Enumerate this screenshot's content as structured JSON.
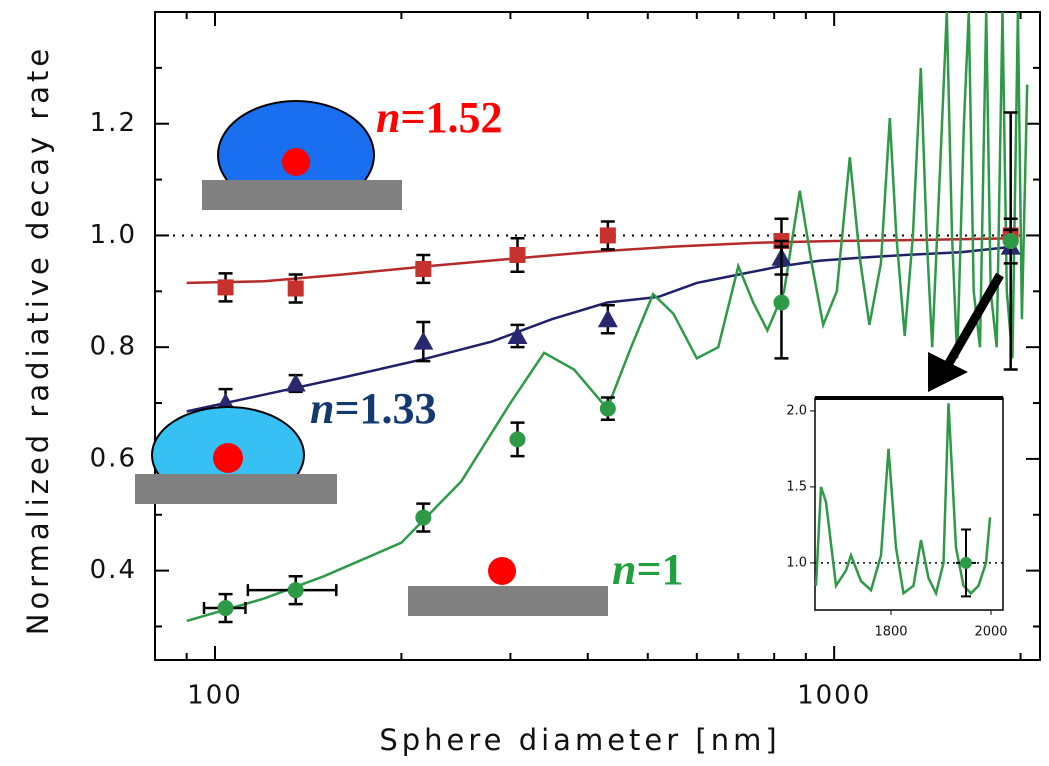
{
  "chart_data": {
    "type": "scatter",
    "x_label": "Sphere diameter [nm]",
    "y_label": "Normalized radiative decay rate",
    "xscale": "log",
    "xlim": [
      80,
      2150
    ],
    "ylim": [
      0.24,
      1.4
    ],
    "xticks": [
      100,
      1000
    ],
    "xminorticks": [
      90,
      200,
      300,
      400,
      500,
      600,
      700,
      800,
      900,
      2000
    ],
    "yticks": [
      0.4,
      0.6,
      0.8,
      {
        "value": 1,
        "label": "1.0"
      },
      1.2
    ],
    "yminorticks": [
      0.3,
      0.5,
      0.7,
      0.9,
      1.1,
      1.3
    ],
    "reference_line": 1,
    "series": [
      {
        "name": "n=1.52",
        "color": "#c8322e",
        "label_color": "#ff0000",
        "line_color": "#b52a2a",
        "marker": "square",
        "x": [
          104,
          135,
          217,
          308,
          431,
          822,
          1928
        ],
        "values": [
          0.907,
          0.905,
          0.94,
          0.965,
          1.0,
          0.99,
          1.0
        ],
        "errors": [
          0.025,
          0.025,
          0.025,
          0.03,
          0.025,
          0.04,
          0.03
        ],
        "theory_x": [
          90,
          120,
          160,
          220,
          300,
          400,
          550,
          750,
          1000,
          1400,
          1950
        ],
        "theory_values": [
          0.915,
          0.918,
          0.93,
          0.945,
          0.958,
          0.97,
          0.98,
          0.987,
          0.99,
          0.992,
          0.995
        ]
      },
      {
        "name": "n=1.33",
        "color": "#28286e",
        "label_color": "#123a6e",
        "line_color": "#20206a",
        "marker": "triangle",
        "x": [
          104,
          135,
          217,
          308,
          431,
          822,
          1928
        ],
        "values": [
          0.7,
          0.735,
          0.81,
          0.82,
          0.85,
          0.96,
          0.98
        ],
        "errors": [
          0.025,
          0.015,
          0.035,
          0.02,
          0.025,
          0.03,
          0.03
        ],
        "theory_x": [
          90,
          120,
          160,
          220,
          280,
          350,
          430,
          520,
          600,
          700,
          820,
          950,
          1100,
          1300,
          1600,
          1950
        ],
        "theory_values": [
          0.685,
          0.715,
          0.745,
          0.78,
          0.81,
          0.85,
          0.88,
          0.89,
          0.915,
          0.93,
          0.945,
          0.955,
          0.96,
          0.965,
          0.97,
          0.98
        ]
      },
      {
        "name": "n=1",
        "color": "#2e9a48",
        "label_color": "#22a040",
        "line_color": "#2e9a48",
        "marker": "circle",
        "x": [
          104,
          135,
          217,
          308,
          431,
          822,
          1928
        ],
        "values": [
          0.333,
          0.365,
          0.495,
          0.635,
          0.69,
          0.88,
          0.99
        ],
        "errors": [
          0.025,
          0.025,
          0.025,
          0.03,
          0.02,
          0.1,
          0.23
        ],
        "x_errors": [
          8,
          22,
          null,
          null,
          null,
          null,
          null
        ],
        "theory_x": [
          90,
          120,
          150,
          200,
          250,
          300,
          340,
          380,
          430,
          470,
          510,
          550,
          600,
          650,
          700,
          740,
          780,
          830,
          880,
          920,
          960,
          1010,
          1060,
          1100,
          1140,
          1190,
          1230,
          1260,
          1300,
          1340,
          1380,
          1410,
          1440,
          1480,
          1520,
          1550,
          1580,
          1620,
          1650,
          1680,
          1720,
          1760,
          1790,
          1830,
          1870,
          1900,
          1940,
          1980,
          2010,
          2050
        ],
        "theory_values": [
          0.31,
          0.35,
          0.39,
          0.45,
          0.56,
          0.7,
          0.79,
          0.76,
          0.69,
          0.8,
          0.895,
          0.86,
          0.78,
          0.8,
          0.945,
          0.88,
          0.83,
          0.9,
          1.08,
          0.95,
          0.84,
          0.9,
          1.14,
          0.96,
          0.84,
          0.95,
          1.21,
          1.0,
          0.82,
          1.0,
          1.3,
          1.0,
          0.8,
          1.1,
          1.4,
          1.0,
          0.78,
          1.2,
          1.4,
          0.9,
          0.8,
          1.4,
          0.9,
          0.8,
          1.4,
          0.9,
          0.78,
          1.4,
          0.85,
          1.27
        ]
      }
    ],
    "inset": {
      "xlim": [
        1648,
        2024
      ],
      "ylim": [
        0.69,
        2.085
      ],
      "xticks": [
        1800,
        2000
      ],
      "yticks": [
        {
          "value": 1,
          "label": "1.0"
        },
        1.5,
        {
          "value": 2,
          "label": "2.0"
        }
      ],
      "reference_line": 1,
      "color": "#2e9a48",
      "x": [
        1650,
        1660,
        1670,
        1690,
        1710,
        1720,
        1740,
        1760,
        1780,
        1795,
        1810,
        1825,
        1845,
        1860,
        1875,
        1890,
        1905,
        1915,
        1930,
        1945,
        1960,
        1975,
        1990,
        1998
      ],
      "values": [
        0.85,
        1.5,
        1.4,
        0.85,
        0.95,
        1.05,
        0.88,
        0.82,
        1.05,
        1.75,
        1.1,
        0.8,
        0.85,
        1.15,
        0.9,
        0.8,
        1.0,
        2.05,
        1.1,
        0.85,
        0.8,
        0.85,
        1.0,
        1.3
      ],
      "point_x": 1950,
      "point_value": 1.0,
      "point_error": 0.22
    }
  }
}
